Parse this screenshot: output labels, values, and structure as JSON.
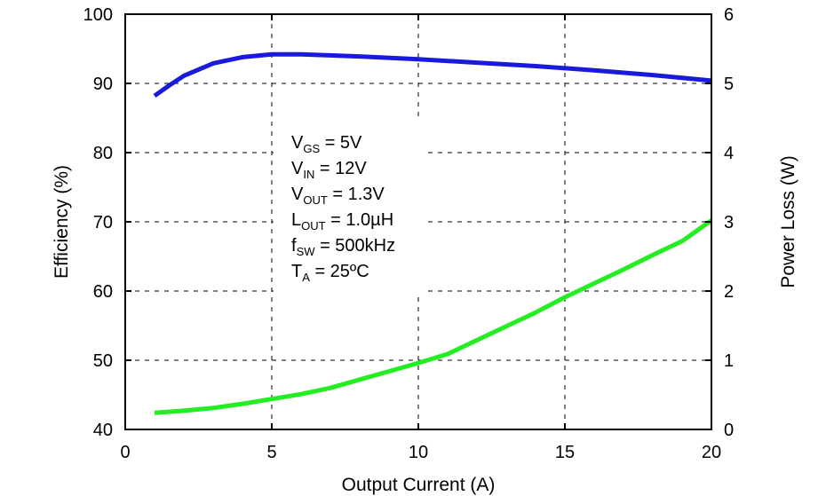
{
  "chart_data": {
    "type": "line",
    "xlabel": "Output Current (A)",
    "ylabel": "Efficiency (%)",
    "y2label": "Power Loss (W)",
    "xlim": [
      0,
      20
    ],
    "ylim": [
      40,
      100
    ],
    "y2lim": [
      0,
      6
    ],
    "grid": true,
    "x_ticks": [
      0,
      5,
      10,
      15,
      20
    ],
    "y_ticks": [
      40,
      50,
      60,
      70,
      80,
      90,
      100
    ],
    "y2_ticks": [
      0,
      1,
      2,
      3,
      4,
      5,
      6
    ],
    "series": [
      {
        "name": "Efficiency",
        "axis": "left",
        "color": "#1a1adc",
        "x": [
          1,
          1.5,
          2,
          3,
          4,
          5,
          6,
          8,
          10,
          12,
          14,
          16,
          18,
          20
        ],
        "values": [
          88.2,
          89.7,
          91.1,
          92.9,
          93.8,
          94.2,
          94.2,
          93.9,
          93.5,
          93.0,
          92.5,
          91.9,
          91.2,
          90.4
        ]
      },
      {
        "name": "Power Loss",
        "axis": "right",
        "color": "#22ee22",
        "x": [
          1,
          2,
          3,
          4,
          5,
          6,
          7,
          8,
          9,
          10,
          11,
          12,
          13,
          14,
          15,
          16,
          17,
          18,
          19,
          20
        ],
        "values": [
          0.24,
          0.27,
          0.31,
          0.37,
          0.44,
          0.51,
          0.6,
          0.72,
          0.84,
          0.96,
          1.09,
          1.29,
          1.49,
          1.69,
          1.91,
          2.11,
          2.31,
          2.52,
          2.72,
          3.02
        ]
      }
    ],
    "annotations": [
      {
        "main": "V",
        "sub": "GS",
        "rest": " = 5V"
      },
      {
        "main": "V",
        "sub": "IN",
        "rest": " = 12V"
      },
      {
        "main": "V",
        "sub": "OUT",
        "rest": " = 1.3V"
      },
      {
        "main": "L",
        "sub": "OUT",
        "rest": " = 1.0µH"
      },
      {
        "main": "f",
        "sub": "SW",
        "rest": " = 500kHz"
      },
      {
        "main": "T",
        "sub": "A",
        "rest": " = 25ºC"
      }
    ]
  }
}
